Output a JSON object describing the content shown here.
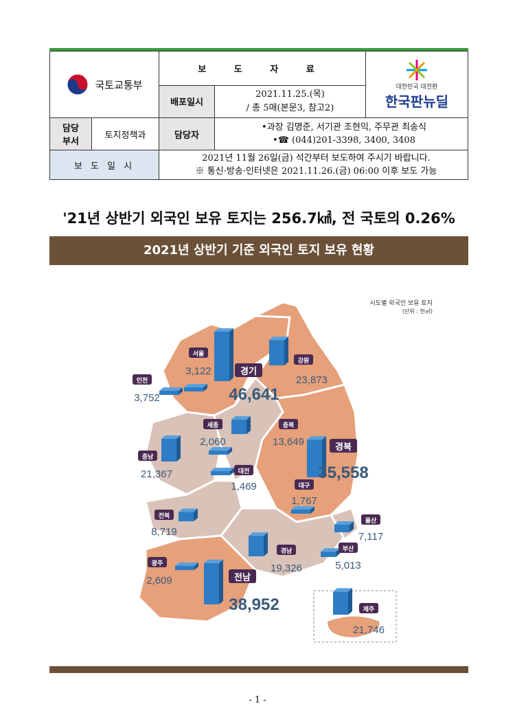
{
  "header": {
    "ministry": "국토교통부",
    "title": "보 도 자 료",
    "release_label": "배포일시",
    "release_date": "2021.11.25.(목)",
    "release_pages": "/ 총 5매(본문3, 참고2)",
    "dept_label": "담당\n부서",
    "dept": "토지정책과",
    "contact_label": "담당자",
    "contact_names": "•과장 김명준, 서기관 조현익, 주무관 최송식",
    "contact_phone": "•☎ (044)201-3398, 3400, 3408",
    "embargo_label": "보 도 일 시",
    "embargo_line1": "2021년 11월 26일(금) 석간부터 보도하여 주시기 바랍니다.",
    "embargo_line2": "※ 통신·방송·인터넷은 2021.11.26.(금) 06:00 이후 보도 가능",
    "kn_small": "대한민국 대전환",
    "kn_big": "한국판뉴딜"
  },
  "headline": "'21년 상반기 외국인 보유 토지는 256.7㎢, 전 국토의 0.26%",
  "banner": "2021년 상반기 기준 외국인 토지 보유 현황",
  "map": {
    "legend_title": "시도별 외국인 보유 토지",
    "legend_unit": "(단위 : 천㎡)",
    "colors": {
      "land_high": "#e6a07a",
      "land_low": "#d9c2b8",
      "bar": "#2e7cc4",
      "label_bg": "#4a2a52",
      "value": "#3a5a7a"
    }
  },
  "chart_data": {
    "type": "bar",
    "title": "시도별 외국인 보유 토지",
    "unit": "천㎡",
    "categories": [
      "경기",
      "전남",
      "경북",
      "강원",
      "충남",
      "제주",
      "경남",
      "충북",
      "전북",
      "울산",
      "부산",
      "인천",
      "서울",
      "광주",
      "세종",
      "대구",
      "대전"
    ],
    "values": [
      46641,
      38952,
      35558,
      23873,
      21367,
      21746,
      19326,
      13649,
      8719,
      7117,
      5013,
      3752,
      3122,
      2609,
      2060,
      1767,
      1469
    ]
  },
  "page_number": "- 1 -"
}
